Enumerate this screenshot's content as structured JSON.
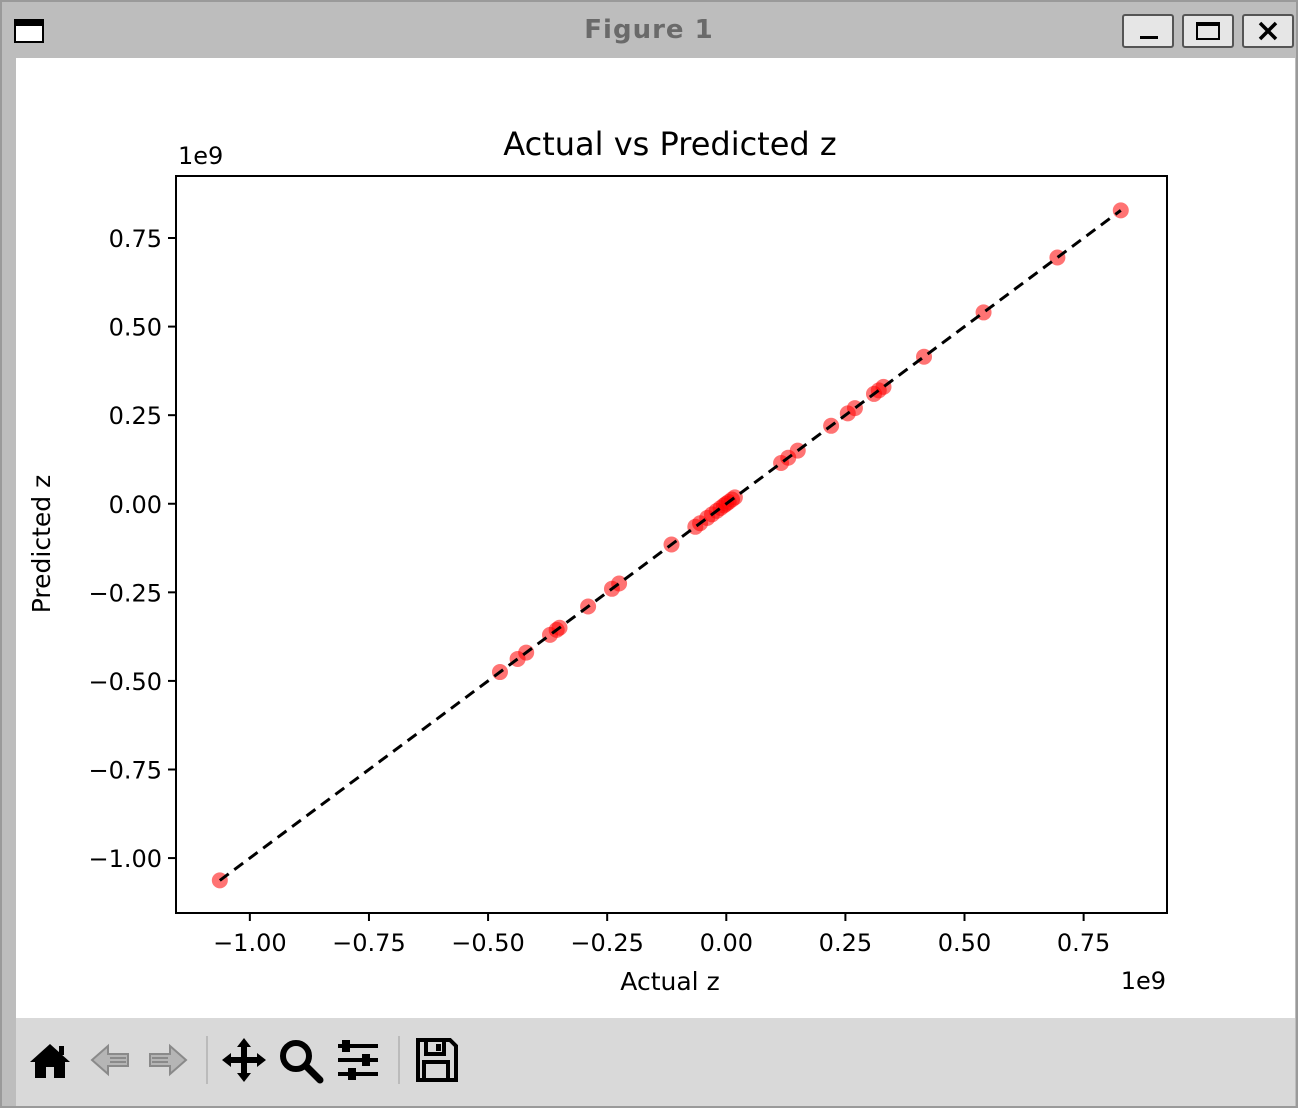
{
  "window": {
    "title": "Figure 1"
  },
  "toolbar": {
    "items": [
      {
        "icon": "home-icon"
      },
      {
        "icon": "back-arrow-icon"
      },
      {
        "icon": "forward-arrow-icon"
      },
      {
        "icon": "pan-icon"
      },
      {
        "icon": "zoom-icon"
      },
      {
        "icon": "configure-subplots-icon"
      },
      {
        "icon": "save-icon"
      }
    ]
  },
  "chart_data": {
    "type": "scatter",
    "title": "Actual vs Predicted z",
    "xlabel": "Actual z",
    "ylabel": "Predicted z",
    "x_offset_label": "1e9",
    "y_offset_label": "1e9",
    "xlim": [
      -1.155,
      0.925
    ],
    "ylim": [
      -1.155,
      0.925
    ],
    "xticks": [
      -1.0,
      -0.75,
      -0.5,
      -0.25,
      0.0,
      0.25,
      0.5,
      0.75
    ],
    "xtick_labels": [
      "−1.00",
      "−0.75",
      "−0.50",
      "−0.25",
      "0.00",
      "0.25",
      "0.50",
      "0.75"
    ],
    "yticks": [
      -1.0,
      -0.75,
      -0.5,
      -0.25,
      0.0,
      0.25,
      0.5,
      0.75
    ],
    "ytick_labels": [
      "−1.00",
      "−0.75",
      "−0.50",
      "−0.25",
      "0.00",
      "0.25",
      "0.50",
      "0.75"
    ],
    "grid": false,
    "marker_color": "#ff0000",
    "marker_alpha": 0.55,
    "reference_line": {
      "style": "dashed",
      "color": "#000000",
      "from": [
        -1.063,
        -1.063
      ],
      "to": [
        0.828,
        0.828
      ]
    },
    "points": [
      {
        "x": -1.063,
        "y": -1.063
      },
      {
        "x": -0.475,
        "y": -0.475
      },
      {
        "x": -0.438,
        "y": -0.438
      },
      {
        "x": -0.42,
        "y": -0.42
      },
      {
        "x": -0.37,
        "y": -0.37
      },
      {
        "x": -0.356,
        "y": -0.356
      },
      {
        "x": -0.35,
        "y": -0.35
      },
      {
        "x": -0.29,
        "y": -0.29
      },
      {
        "x": -0.24,
        "y": -0.24
      },
      {
        "x": -0.225,
        "y": -0.225
      },
      {
        "x": -0.115,
        "y": -0.115
      },
      {
        "x": -0.065,
        "y": -0.065
      },
      {
        "x": -0.055,
        "y": -0.055
      },
      {
        "x": -0.04,
        "y": -0.04
      },
      {
        "x": -0.03,
        "y": -0.03
      },
      {
        "x": -0.02,
        "y": -0.02
      },
      {
        "x": -0.012,
        "y": -0.012
      },
      {
        "x": -0.005,
        "y": -0.005
      },
      {
        "x": 0.0,
        "y": 0.0
      },
      {
        "x": 0.005,
        "y": 0.005
      },
      {
        "x": 0.012,
        "y": 0.012
      },
      {
        "x": 0.018,
        "y": 0.018
      },
      {
        "x": 0.115,
        "y": 0.115
      },
      {
        "x": 0.13,
        "y": 0.13
      },
      {
        "x": 0.15,
        "y": 0.15
      },
      {
        "x": 0.22,
        "y": 0.22
      },
      {
        "x": 0.255,
        "y": 0.255
      },
      {
        "x": 0.27,
        "y": 0.27
      },
      {
        "x": 0.31,
        "y": 0.31
      },
      {
        "x": 0.32,
        "y": 0.32
      },
      {
        "x": 0.33,
        "y": 0.33
      },
      {
        "x": 0.415,
        "y": 0.415
      },
      {
        "x": 0.54,
        "y": 0.54
      },
      {
        "x": 0.695,
        "y": 0.695
      },
      {
        "x": 0.828,
        "y": 0.828
      }
    ]
  }
}
